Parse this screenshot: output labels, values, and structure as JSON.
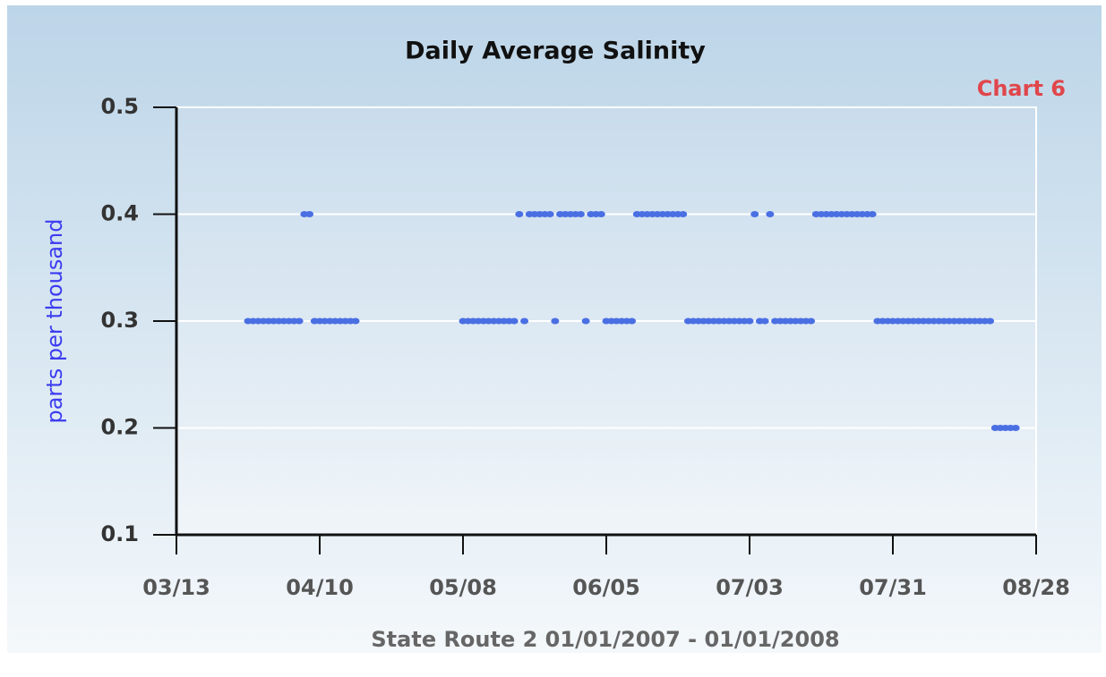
{
  "chart_data": {
    "type": "scatter",
    "title": "Daily Average Salinity",
    "annotation": "Chart 6",
    "xlabel": "State Route 2 01/01/2007 - 01/01/2008",
    "ylabel": "parts per thousand",
    "color": "#4a6fe3",
    "x": [
      "03/27",
      "03/28",
      "03/29",
      "03/30",
      "03/31",
      "04/01",
      "04/02",
      "04/03",
      "04/04",
      "04/05",
      "04/06",
      "04/07",
      "04/08",
      "04/09",
      "04/10",
      "04/11",
      "04/12",
      "04/13",
      "04/14",
      "04/15",
      "04/16",
      "04/17",
      "05/08",
      "05/09",
      "05/10",
      "05/11",
      "05/12",
      "05/13",
      "05/14",
      "05/15",
      "05/16",
      "05/17",
      "05/18",
      "05/19",
      "05/20",
      "05/21",
      "05/22",
      "05/23",
      "05/24",
      "05/25",
      "05/26",
      "05/27",
      "05/28",
      "05/29",
      "05/30",
      "05/31",
      "06/01",
      "06/02",
      "06/03",
      "06/04",
      "06/05",
      "06/06",
      "06/07",
      "06/08",
      "06/09",
      "06/10",
      "06/11",
      "06/12",
      "06/13",
      "06/14",
      "06/15",
      "06/16",
      "06/17",
      "06/18",
      "06/19",
      "06/20",
      "06/21",
      "06/22",
      "06/23",
      "06/24",
      "06/25",
      "06/26",
      "06/27",
      "06/28",
      "06/29",
      "06/30",
      "07/01",
      "07/02",
      "07/03",
      "07/04",
      "07/05",
      "07/06",
      "07/07",
      "07/08",
      "07/09",
      "07/10",
      "07/11",
      "07/12",
      "07/13",
      "07/14",
      "07/15",
      "07/16",
      "07/17",
      "07/18",
      "07/19",
      "07/20",
      "07/21",
      "07/22",
      "07/23",
      "07/24",
      "07/25",
      "07/26",
      "07/27",
      "07/28",
      "07/29",
      "07/30",
      "07/31",
      "08/01",
      "08/02",
      "08/03",
      "08/04",
      "08/05",
      "08/06",
      "08/07",
      "08/08",
      "08/09",
      "08/10",
      "08/11",
      "08/12",
      "08/13",
      "08/14",
      "08/15",
      "08/16",
      "08/17",
      "08/18",
      "08/19",
      "08/20",
      "08/21",
      "08/22",
      "08/23",
      "08/24"
    ],
    "values": [
      0.3,
      0.3,
      0.3,
      0.3,
      0.3,
      0.3,
      0.3,
      0.3,
      0.3,
      0.3,
      0.3,
      0.4,
      0.4,
      0.3,
      0.3,
      0.3,
      0.3,
      0.3,
      0.3,
      0.3,
      0.3,
      0.3,
      0.3,
      0.3,
      0.3,
      0.3,
      0.3,
      0.3,
      0.3,
      0.3,
      0.3,
      0.3,
      0.3,
      0.4,
      0.3,
      0.4,
      0.4,
      0.4,
      0.4,
      0.4,
      0.3,
      0.4,
      0.4,
      0.4,
      0.4,
      0.4,
      0.3,
      0.4,
      0.4,
      0.4,
      0.3,
      0.3,
      0.3,
      0.3,
      0.3,
      0.3,
      0.4,
      0.4,
      0.4,
      0.4,
      0.4,
      0.4,
      0.4,
      0.4,
      0.4,
      0.4,
      0.3,
      0.3,
      0.3,
      0.3,
      0.3,
      0.3,
      0.3,
      0.3,
      0.3,
      0.3,
      0.3,
      0.3,
      0.3,
      0.4,
      0.3,
      0.3,
      0.4,
      0.3,
      0.3,
      0.3,
      0.3,
      0.3,
      0.3,
      0.3,
      0.3,
      0.4,
      0.4,
      0.4,
      0.4,
      0.4,
      0.4,
      0.4,
      0.4,
      0.4,
      0.4,
      0.4,
      0.4,
      0.3,
      0.3,
      0.3,
      0.3,
      0.3,
      0.3,
      0.3,
      0.3,
      0.3,
      0.3,
      0.3,
      0.3,
      0.3,
      0.3,
      0.3,
      0.3,
      0.3,
      0.3,
      0.3,
      0.3,
      0.3,
      0.3,
      0.3,
      0.2,
      0.2,
      0.2,
      0.2,
      0.2
    ],
    "xlim": [
      "03/13",
      "08/28"
    ],
    "xticks": [
      "03/13",
      "04/10",
      "05/08",
      "06/05",
      "07/03",
      "07/31",
      "08/28"
    ],
    "ylim": [
      0.1,
      0.5
    ],
    "yticks": [
      0.1,
      0.2,
      0.3,
      0.4,
      0.5
    ],
    "grid": true
  }
}
